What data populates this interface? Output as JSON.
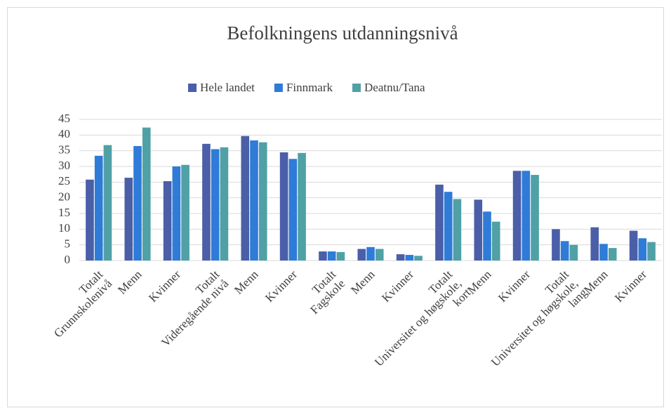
{
  "chart_data": {
    "type": "bar",
    "title": "Befolkningens utdanningsnivå",
    "categories": [
      [
        "Totalt",
        "Grunnskolenivå"
      ],
      [
        "Menn"
      ],
      [
        "Kvinner"
      ],
      [
        "Totalt",
        "Videregående nivå"
      ],
      [
        "Menn"
      ],
      [
        "Kvinner"
      ],
      [
        "Totalt",
        "Fagskole"
      ],
      [
        "Menn"
      ],
      [
        "Kvinner"
      ],
      [
        "Totalt",
        "Universitet og høgskole,",
        "kort"
      ],
      [
        "Menn"
      ],
      [
        "Kvinner"
      ],
      [
        "Totalt",
        "Universitet og høgskole,",
        "lang"
      ],
      [
        "Menn"
      ],
      [
        "Kvinner"
      ]
    ],
    "series": [
      {
        "name": "Hele landet",
        "color": "#4a5fa8",
        "values": [
          25.8,
          26.4,
          25.3,
          37.2,
          39.7,
          34.5,
          2.9,
          3.7,
          2.0,
          24.2,
          19.4,
          28.6,
          10.0,
          10.6,
          9.5
        ]
      },
      {
        "name": "Finnmark",
        "color": "#2f7bd8",
        "values": [
          33.4,
          36.5,
          30.0,
          35.5,
          38.3,
          32.4,
          2.9,
          4.3,
          1.8,
          21.9,
          15.6,
          28.6,
          6.2,
          5.3,
          7.1
        ]
      },
      {
        "name": "Deatnu/Tana",
        "color": "#4fa1a6",
        "values": [
          36.8,
          42.4,
          30.5,
          36.1,
          37.7,
          34.3,
          2.7,
          3.7,
          1.5,
          19.6,
          12.4,
          27.3,
          5.0,
          4.0,
          5.9
        ]
      }
    ],
    "ylim": [
      0,
      45
    ],
    "yticks": [
      0,
      5,
      10,
      15,
      20,
      25,
      30,
      35,
      40,
      45
    ],
    "grid": true,
    "legend": "top"
  }
}
